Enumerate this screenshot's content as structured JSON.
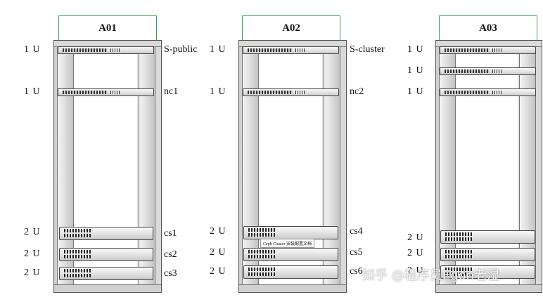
{
  "racks": [
    {
      "title": "A01",
      "devices": [
        {
          "u": "1 U",
          "name": "S-public"
        },
        {
          "u": "1 U",
          "name": "nc1"
        },
        {
          "u": "2 U",
          "name": "cs1"
        },
        {
          "u": "2 U",
          "name": "cs2"
        },
        {
          "u": "2 U",
          "name": "cs3"
        }
      ]
    },
    {
      "title": "A02",
      "devices": [
        {
          "u": "1 U",
          "name": "S-cluster"
        },
        {
          "u": "1 U",
          "name": "nc2"
        },
        {
          "u": "2 U",
          "name": "cs4"
        },
        {
          "u": "2 U",
          "name": "cs5"
        },
        {
          "u": "2 U",
          "name": "cs6"
        }
      ]
    },
    {
      "title": "A03",
      "devices": [
        {
          "u": "1 U",
          "name": ""
        },
        {
          "u": "1 U",
          "name": ""
        },
        {
          "u": "1 U",
          "name": ""
        },
        {
          "u": "2 U",
          "name": ""
        },
        {
          "u": "2 U",
          "name": ""
        },
        {
          "u": "2 U",
          "name": ""
        }
      ]
    }
  ],
  "caption": "Ceph Cluster 安装配置文档",
  "watermark": "知乎 @程序员Egon老湿"
}
